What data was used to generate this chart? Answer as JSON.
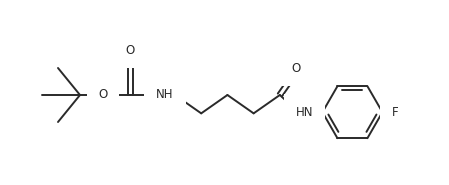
{
  "bg_color": "#ffffff",
  "line_color": "#2a2a2a",
  "text_color": "#2a2a2a",
  "label_color_NH": "#2a2a2a",
  "label_color_O": "#2a2a2a",
  "label_color_F": "#2a2a2a",
  "line_width": 1.4,
  "font_size": 8.5,
  "figsize": [
    4.49,
    1.85
  ],
  "dpi": 100,
  "xlim": [
    0,
    449
  ],
  "ylim": [
    0,
    185
  ]
}
